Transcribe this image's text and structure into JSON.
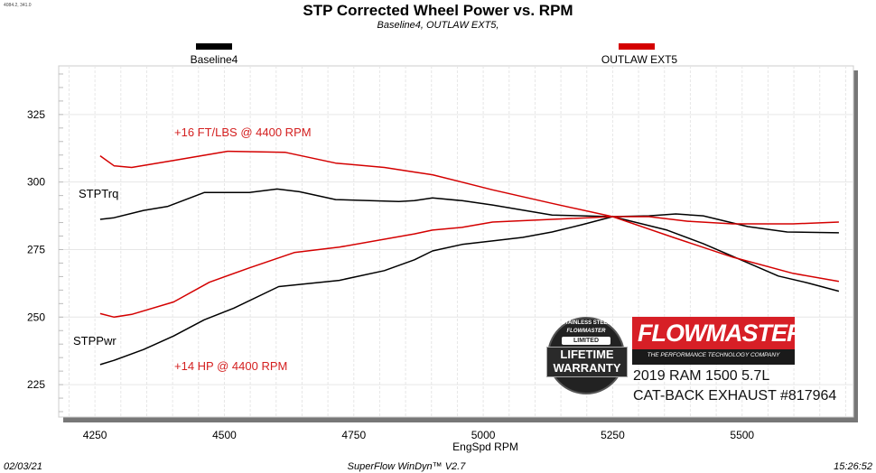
{
  "cursor_readout": "4084.2, 341.0",
  "footer": {
    "date": "02/03/21",
    "app": "SuperFlow WinDyn™ V2.7",
    "time": "15:26:52"
  },
  "annotations": {
    "torque_gain": "+16 FT/LBS @ 4400 RPM",
    "power_gain": "+14 HP @ 4400 RPM",
    "torque_label": "STPTrq",
    "power_label": "STPPwr"
  },
  "branding": {
    "warranty_badge": {
      "top_text": "STAINLESS STEEL",
      "brand": "FLOWMASTER",
      "line1": "LIMITED",
      "line2": "LIFETIME",
      "line3": "WARRANTY"
    },
    "logo": {
      "name": "FLOWMASTER",
      "tagline": "THE PERFORMANCE TECHNOLOGY COMPANY",
      "color": "#d71f26"
    },
    "vehicle": "2019 RAM 1500 5.7L",
    "product": "CAT-BACK EXHAUST #817964"
  },
  "chart_data": {
    "type": "line",
    "title": "STP Corrected Wheel Power vs. RPM",
    "subtitle": "Baseline4,  OUTLAW EXT5,",
    "xlabel": "EngSpd  RPM",
    "ylabel": "",
    "xlim": [
      4180,
      5715
    ],
    "ylim": [
      213,
      343
    ],
    "xticks": [
      4250,
      4500,
      4750,
      5000,
      5250,
      5500
    ],
    "yticks": [
      225,
      250,
      275,
      300,
      325
    ],
    "grid": true,
    "legend": [
      {
        "name": "Baseline4",
        "color": "#000000",
        "position": "top-left"
      },
      {
        "name": "OUTLAW EXT5",
        "color": "#d40000",
        "position": "top-right"
      }
    ],
    "series": [
      {
        "run": "Baseline4",
        "quantity": "STPTrq",
        "color": "#000000",
        "x": [
          4260,
          4287,
          4344,
          4391,
          4461,
          4548,
          4602,
          4645,
          4715,
          4837,
          4867,
          4902,
          4959,
          5018,
          5133,
          5250,
          5355,
          5425,
          5506,
          5570,
          5628,
          5687
        ],
        "y": [
          286.2,
          286.8,
          289.5,
          291,
          296.1,
          296.1,
          297.4,
          296.4,
          293.5,
          292.8,
          293.1,
          294.1,
          293.1,
          291.5,
          287.8,
          287.2,
          282.2,
          277.2,
          270.5,
          265.2,
          262.6,
          259.6
        ]
      },
      {
        "run": "Baseline4",
        "quantity": "STPPwr",
        "color": "#000000",
        "x": [
          4260,
          4287,
          4344,
          4402,
          4461,
          4518,
          4605,
          4722,
          4809,
          4867,
          4902,
          4959,
          5018,
          5076,
          5133,
          5191,
          5250,
          5320,
          5372,
          5425,
          5511,
          5587,
          5687
        ],
        "y": [
          232.4,
          234,
          238,
          243,
          249,
          253.3,
          261.3,
          263.6,
          267.2,
          271.2,
          274.5,
          276.9,
          278.2,
          279.5,
          281.5,
          284.2,
          287.2,
          287.5,
          288.2,
          287.5,
          283.5,
          281.5,
          281.2
        ]
      },
      {
        "run": "OUTLAW EXT5",
        "quantity": "STPTrq",
        "color": "#d40000",
        "x": [
          4260,
          4287,
          4321,
          4402,
          4506,
          4618,
          4715,
          4809,
          4867,
          4902,
          5018,
          5133,
          5250,
          5367,
          5482,
          5598,
          5687
        ],
        "y": [
          309.7,
          306,
          305.4,
          308,
          311.4,
          311,
          307,
          305.4,
          303.7,
          302.7,
          297.1,
          292.1,
          287.2,
          279.5,
          272.2,
          266.2,
          263.2
        ]
      },
      {
        "run": "OUTLAW EXT5",
        "quantity": "STPPwr",
        "color": "#d40000",
        "x": [
          4260,
          4287,
          4321,
          4402,
          4471,
          4548,
          4635,
          4722,
          4867,
          4902,
          4959,
          5018,
          5133,
          5250,
          5320,
          5395,
          5482,
          5598,
          5687
        ],
        "y": [
          251.3,
          250,
          251,
          255.6,
          262.9,
          268.2,
          273.9,
          275.9,
          280.8,
          282.2,
          283.2,
          285.2,
          286.2,
          287.2,
          287.2,
          285.5,
          284.5,
          284.5,
          285.2
        ]
      }
    ]
  }
}
